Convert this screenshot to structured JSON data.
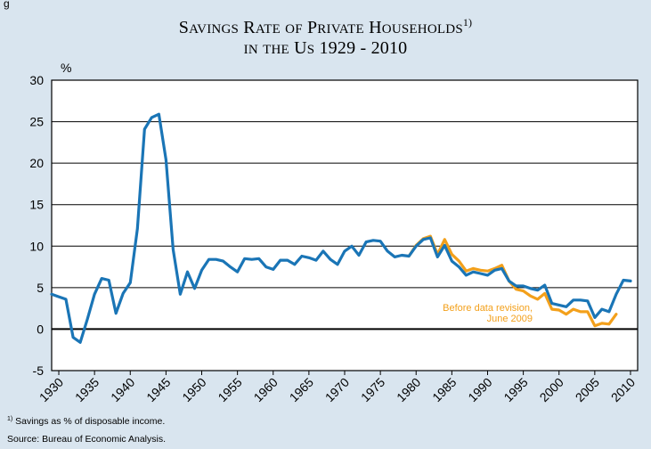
{
  "figure_label": "g",
  "title_main": "Savings Rate of Private Households",
  "title_sup": "1)",
  "title_line2": "in the US 1929 - 2010",
  "footnote": {
    "marker": "1)",
    "text": "Savings as % of disposable income."
  },
  "source": "Source: Bureau of Economic Analysis.",
  "colors": {
    "background": "#d9e5ef",
    "plot_background": "#ffffff",
    "current_series": "#1a75b6",
    "before_revision_series": "#f3a01b",
    "gridline": "#000000"
  },
  "chart_data": {
    "type": "line",
    "title": "Savings Rate of Private Households 1) in the US 1929 - 2010",
    "ylabel": "%",
    "xlabel": "",
    "ylim": [
      -5,
      30
    ],
    "yticks": [
      -5,
      0,
      5,
      10,
      15,
      20,
      25,
      30
    ],
    "xlim": [
      1929,
      2011
    ],
    "xticks": [
      "1930",
      "1935",
      "1940",
      "1945",
      "1950",
      "1955",
      "1960",
      "1965",
      "1970",
      "1975",
      "1980",
      "1985",
      "1990",
      "1995",
      "2000",
      "2005",
      "2010"
    ],
    "grid": true,
    "annotation": {
      "text_line1": "Before data revision,",
      "text_line2": "June 2009"
    },
    "series": [
      {
        "key": "current",
        "color": "#1a75b6",
        "x": [
          1929,
          1930,
          1931,
          1932,
          1933,
          1934,
          1935,
          1936,
          1937,
          1938,
          1939,
          1940,
          1941,
          1942,
          1943,
          1944,
          1945,
          1946,
          1947,
          1948,
          1949,
          1950,
          1951,
          1952,
          1953,
          1954,
          1955,
          1956,
          1957,
          1958,
          1959,
          1960,
          1961,
          1962,
          1963,
          1964,
          1965,
          1966,
          1967,
          1968,
          1969,
          1970,
          1971,
          1972,
          1973,
          1974,
          1975,
          1976,
          1977,
          1978,
          1979,
          1980,
          1981,
          1982,
          1983,
          1984,
          1985,
          1986,
          1987,
          1988,
          1989,
          1990,
          1991,
          1992,
          1993,
          1994,
          1995,
          1996,
          1997,
          1998,
          1999,
          2000,
          2001,
          2002,
          2003,
          2004,
          2005,
          2006,
          2007,
          2008,
          2009,
          2010
        ],
        "y": [
          4.2,
          3.9,
          3.6,
          -1.0,
          -1.6,
          1.2,
          4.2,
          6.1,
          5.9,
          1.9,
          4.3,
          5.6,
          12.1,
          24.1,
          25.5,
          25.9,
          20.4,
          9.6,
          4.2,
          6.9,
          4.9,
          7.1,
          8.4,
          8.4,
          8.2,
          7.5,
          6.9,
          8.5,
          8.4,
          8.5,
          7.5,
          7.2,
          8.3,
          8.3,
          7.8,
          8.8,
          8.6,
          8.3,
          9.4,
          8.4,
          7.8,
          9.4,
          10.0,
          8.9,
          10.5,
          10.7,
          10.6,
          9.4,
          8.7,
          8.9,
          8.8,
          10.0,
          10.8,
          11.0,
          8.7,
          10.1,
          8.2,
          7.5,
          6.5,
          6.9,
          6.7,
          6.5,
          7.1,
          7.3,
          5.8,
          5.2,
          5.2,
          4.9,
          4.7,
          5.3,
          3.1,
          2.9,
          2.7,
          3.5,
          3.5,
          3.4,
          1.4,
          2.4,
          2.1,
          4.2,
          5.9,
          5.8
        ]
      },
      {
        "key": "before_revision",
        "color": "#f3a01b",
        "x": [
          1979,
          1980,
          1981,
          1982,
          1983,
          1984,
          1985,
          1986,
          1987,
          1988,
          1989,
          1990,
          1991,
          1992,
          1993,
          1994,
          1995,
          1996,
          1997,
          1998,
          1999,
          2000,
          2001,
          2002,
          2003,
          2004,
          2005,
          2006,
          2007,
          2008
        ],
        "y": [
          8.8,
          10.1,
          10.9,
          11.2,
          9.0,
          10.8,
          9.0,
          8.2,
          7.0,
          7.3,
          7.1,
          7.0,
          7.3,
          7.7,
          5.8,
          4.8,
          4.6,
          4.0,
          3.6,
          4.3,
          2.4,
          2.3,
          1.8,
          2.4,
          2.1,
          2.1,
          0.4,
          0.7,
          0.6,
          1.8
        ]
      }
    ]
  }
}
